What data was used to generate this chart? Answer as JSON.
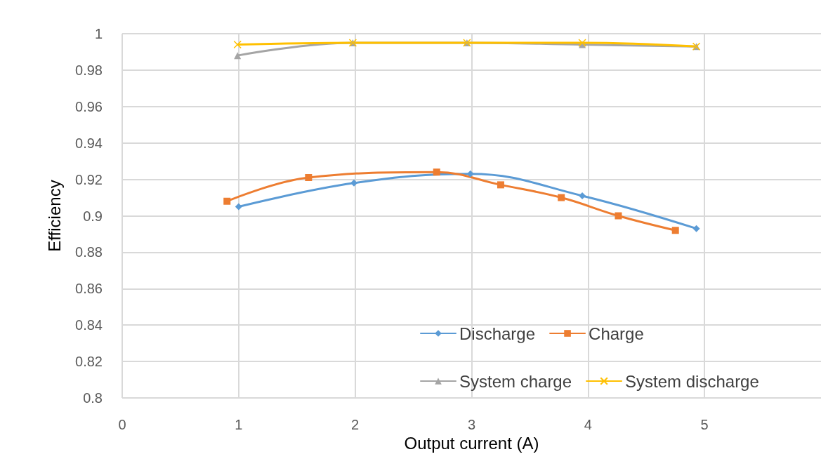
{
  "chart_data": {
    "type": "line",
    "xlabel": "Output current (A)",
    "ylabel": "Efficiency",
    "xlim": [
      0,
      6
    ],
    "xticks": [
      0,
      1,
      2,
      3,
      4,
      5
    ],
    "ylim": [
      0.8,
      1
    ],
    "yticks": [
      0.8,
      0.82,
      0.84,
      0.86,
      0.88,
      0.9,
      0.92,
      0.94,
      0.96,
      0.98,
      1
    ],
    "grid": true,
    "legend": "bottom right",
    "line_style": "solid",
    "series": [
      {
        "name": "Discharge",
        "color": "#5b9bd5",
        "marker": "diamond",
        "x": [
          1.0,
          1.99,
          2.99,
          3.95,
          4.93
        ],
        "values": [
          0.905,
          0.918,
          0.923,
          0.911,
          0.893
        ]
      },
      {
        "name": "Charge",
        "color": "#ed7d31",
        "marker": "square",
        "x": [
          0.9,
          1.6,
          2.7,
          3.25,
          3.77,
          4.26,
          4.75
        ],
        "values": [
          0.908,
          0.921,
          0.924,
          0.917,
          0.91,
          0.9,
          0.892
        ]
      },
      {
        "name": "System charge",
        "color": "#a5a5a5",
        "marker": "triangle",
        "x": [
          0.99,
          1.98,
          2.96,
          3.95,
          4.93
        ],
        "values": [
          0.988,
          0.995,
          0.995,
          0.994,
          0.993
        ]
      },
      {
        "name": "System discharge",
        "color": "#ffc000",
        "marker": "cross",
        "x": [
          0.99,
          1.98,
          2.96,
          3.95,
          4.93
        ],
        "values": [
          0.994,
          0.995,
          0.995,
          0.995,
          0.993
        ]
      }
    ]
  }
}
